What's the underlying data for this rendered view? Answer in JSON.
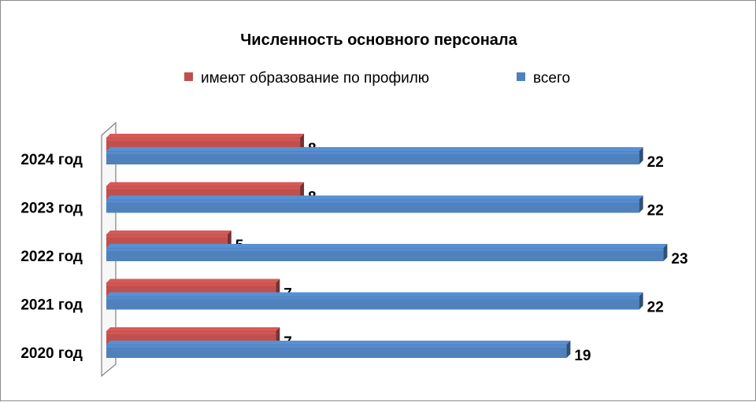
{
  "chart_data": {
    "type": "bar",
    "orientation": "horizontal",
    "title": "Численность основного персонала",
    "categories": [
      "2024 год",
      "2023 год",
      "2022 год",
      "2021 год",
      "2020 год"
    ],
    "series": [
      {
        "name": "имеют образование по профилю",
        "color": "#c0504d",
        "values": [
          8,
          8,
          5,
          7,
          7
        ]
      },
      {
        "name": "всего",
        "color": "#4f81bd",
        "values": [
          22,
          22,
          23,
          22,
          19
        ]
      }
    ],
    "xlim": [
      0,
      23.8
    ],
    "legend": "top",
    "grid": false,
    "data_labels": true
  }
}
